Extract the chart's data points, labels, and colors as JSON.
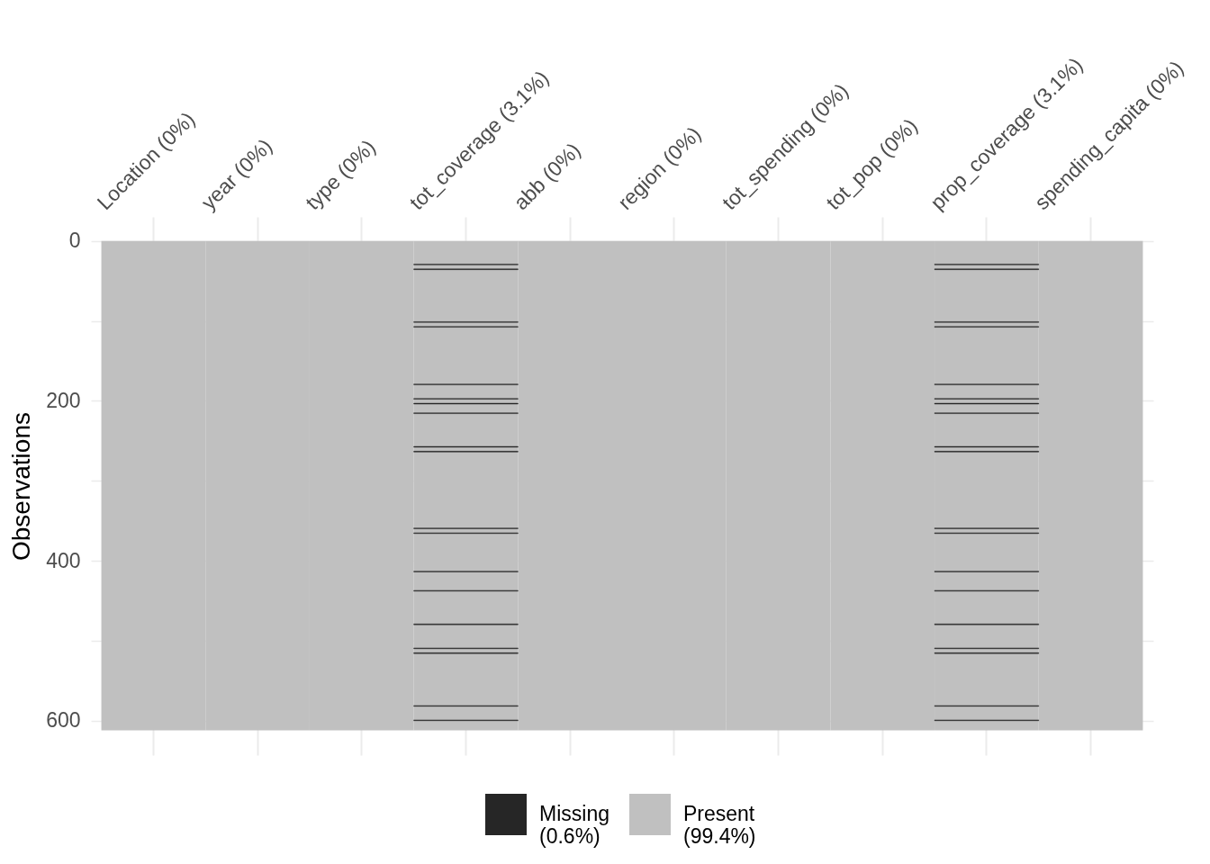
{
  "chart_data": {
    "type": "bar",
    "categories": [
      "Location (0%)",
      "year (0%)",
      "type (0%)",
      "tot_coverage (3.1%)",
      "abb (0%)",
      "region (0%)",
      "tot_spending (0%)",
      "tot_pop (0%)",
      "prop_coverage (3.1%)",
      "spending_capita (0%)"
    ],
    "ylabel": "Observations",
    "ylim": [
      643,
      -30
    ],
    "yticks": [
      0,
      {
        "value": 100,
        "label": null
      },
      200,
      {
        "value": 300,
        "label": null
      },
      400,
      {
        "value": 500,
        "label": null
      },
      600
    ],
    "grid": true,
    "legend": "bottom",
    "series": [
      {
        "name": "Missing (0.6%)",
        "color": "#262626",
        "type": "bar",
        "x": [
          "tot_coverage (3.1%)",
          "tot_coverage (3.1%)",
          "tot_coverage (3.1%)",
          "tot_coverage (3.1%)",
          "tot_coverage (3.1%)",
          "tot_coverage (3.1%)",
          "tot_coverage (3.1%)",
          "tot_coverage (3.1%)",
          "tot_coverage (3.1%)",
          "tot_coverage (3.1%)",
          "tot_coverage (3.1%)",
          "tot_coverage (3.1%)",
          "tot_coverage (3.1%)",
          "tot_coverage (3.1%)",
          "tot_coverage (3.1%)",
          "tot_coverage (3.1%)",
          "tot_coverage (3.1%)",
          "tot_coverage (3.1%)",
          "tot_coverage (3.1%)",
          "prop_coverage (3.1%)",
          "prop_coverage (3.1%)",
          "prop_coverage (3.1%)",
          "prop_coverage (3.1%)",
          "prop_coverage (3.1%)",
          "prop_coverage (3.1%)",
          "prop_coverage (3.1%)",
          "prop_coverage (3.1%)",
          "prop_coverage (3.1%)",
          "prop_coverage (3.1%)",
          "prop_coverage (3.1%)",
          "prop_coverage (3.1%)",
          "prop_coverage (3.1%)",
          "prop_coverage (3.1%)",
          "prop_coverage (3.1%)",
          "prop_coverage (3.1%)",
          "prop_coverage (3.1%)",
          "prop_coverage (3.1%)",
          "prop_coverage (3.1%)"
        ],
        "base": [
          29,
          35,
          101,
          107,
          179,
          197,
          203,
          215,
          257,
          263,
          359,
          365,
          413,
          437,
          479,
          509,
          515,
          581,
          599,
          29,
          35,
          101,
          107,
          179,
          197,
          203,
          215,
          257,
          263,
          359,
          365,
          413,
          437,
          479,
          509,
          515,
          581,
          599
        ],
        "values": [
          1,
          1,
          1,
          1,
          1,
          1,
          1,
          1,
          1,
          1,
          1,
          1,
          1,
          1,
          1,
          1,
          1,
          1,
          1,
          1,
          1,
          1,
          1,
          1,
          1,
          1,
          1,
          1,
          1,
          1,
          1,
          1,
          1,
          1,
          1,
          1,
          1,
          1
        ]
      },
      {
        "name": "Present (99.4%)",
        "color": "#c0c0c0",
        "values": [
          612,
          612,
          612,
          612,
          612,
          612,
          612,
          612,
          612,
          612
        ]
      }
    ]
  }
}
